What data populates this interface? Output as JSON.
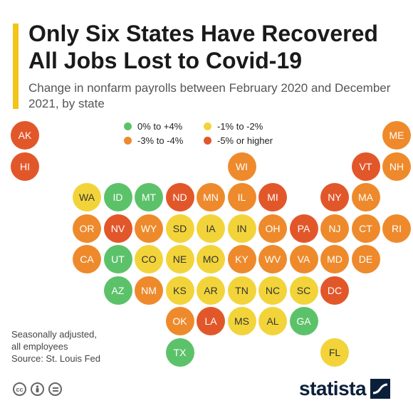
{
  "header": {
    "title": "Only Six States Have Recovered All Jobs Lost to Covid-19",
    "subtitle": "Change in nonfarm payrolls between February 2020 and December 2021, by state",
    "accent_color": "#f2c519"
  },
  "legend": [
    {
      "label": "0% to +4%",
      "color": "#5cc26a"
    },
    {
      "label": "-1% to -2%",
      "color": "#f2d43a"
    },
    {
      "label": "-3% to -4%",
      "color": "#ee8a2c"
    },
    {
      "label": "-5% or higher",
      "color": "#e2572a"
    }
  ],
  "states": [
    {
      "abbr": "AK",
      "category": 3
    },
    {
      "abbr": "ME",
      "category": 2
    },
    {
      "abbr": "HI",
      "category": 3
    },
    {
      "abbr": "WI",
      "category": 2
    },
    {
      "abbr": "VT",
      "category": 3
    },
    {
      "abbr": "NH",
      "category": 2
    },
    {
      "abbr": "WA",
      "category": 1
    },
    {
      "abbr": "ID",
      "category": 0
    },
    {
      "abbr": "MT",
      "category": 0
    },
    {
      "abbr": "ND",
      "category": 3
    },
    {
      "abbr": "MN",
      "category": 2
    },
    {
      "abbr": "IL",
      "category": 2
    },
    {
      "abbr": "MI",
      "category": 3
    },
    {
      "abbr": "NY",
      "category": 3
    },
    {
      "abbr": "MA",
      "category": 2
    },
    {
      "abbr": "OR",
      "category": 2
    },
    {
      "abbr": "NV",
      "category": 3
    },
    {
      "abbr": "WY",
      "category": 2
    },
    {
      "abbr": "SD",
      "category": 1
    },
    {
      "abbr": "IA",
      "category": 1
    },
    {
      "abbr": "IN",
      "category": 1
    },
    {
      "abbr": "OH",
      "category": 2
    },
    {
      "abbr": "PA",
      "category": 3
    },
    {
      "abbr": "NJ",
      "category": 2
    },
    {
      "abbr": "CT",
      "category": 2
    },
    {
      "abbr": "RI",
      "category": 2
    },
    {
      "abbr": "CA",
      "category": 2
    },
    {
      "abbr": "UT",
      "category": 0
    },
    {
      "abbr": "CO",
      "category": 1
    },
    {
      "abbr": "NE",
      "category": 1
    },
    {
      "abbr": "MO",
      "category": 1
    },
    {
      "abbr": "KY",
      "category": 2
    },
    {
      "abbr": "WV",
      "category": 2
    },
    {
      "abbr": "VA",
      "category": 2
    },
    {
      "abbr": "MD",
      "category": 2
    },
    {
      "abbr": "DE",
      "category": 2
    },
    {
      "abbr": "AZ",
      "category": 0
    },
    {
      "abbr": "NM",
      "category": 2
    },
    {
      "abbr": "KS",
      "category": 1
    },
    {
      "abbr": "AR",
      "category": 1
    },
    {
      "abbr": "TN",
      "category": 1
    },
    {
      "abbr": "NC",
      "category": 1
    },
    {
      "abbr": "SC",
      "category": 1
    },
    {
      "abbr": "DC",
      "category": 3
    },
    {
      "abbr": "OK",
      "category": 2
    },
    {
      "abbr": "LA",
      "category": 3
    },
    {
      "abbr": "MS",
      "category": 1
    },
    {
      "abbr": "AL",
      "category": 1
    },
    {
      "abbr": "GA",
      "category": 0
    },
    {
      "abbr": "TX",
      "category": 0
    },
    {
      "abbr": "FL",
      "category": 1
    }
  ],
  "footer": {
    "note_line1": "Seasonally adjusted,",
    "note_line2": "all employees",
    "source": "Source: St. Louis Fed",
    "license_icons": [
      "cc-icon",
      "attribution-icon",
      "no-derivatives-icon"
    ],
    "brand": "statista"
  }
}
